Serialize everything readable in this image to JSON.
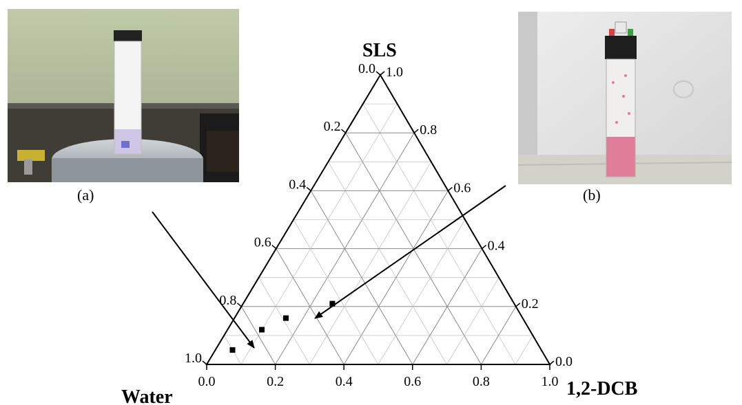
{
  "vertices": {
    "top": "SLS",
    "left": "Water",
    "right": "1,2-DCB"
  },
  "photos": {
    "a": {
      "caption": "(a)"
    },
    "b": {
      "caption": "(b)"
    }
  },
  "chart_data": {
    "type": "ternary",
    "bottom_ticks": [
      "0.0",
      "0.2",
      "0.4",
      "0.6",
      "0.8",
      "1.0"
    ],
    "left_ticks": [
      "0.0",
      "0.2",
      "0.4",
      "0.6",
      "0.8",
      "1.0"
    ],
    "right_ticks": [
      "1.0",
      "0.8",
      "0.6",
      "0.4",
      "0.2",
      "0.0"
    ],
    "grid_step": 0.1,
    "points": [
      {
        "sls": 0.05,
        "dcb": 0.05
      },
      {
        "sls": 0.12,
        "dcb": 0.1
      },
      {
        "sls": 0.16,
        "dcb": 0.15
      },
      {
        "sls": 0.21,
        "dcb": 0.26
      }
    ]
  }
}
